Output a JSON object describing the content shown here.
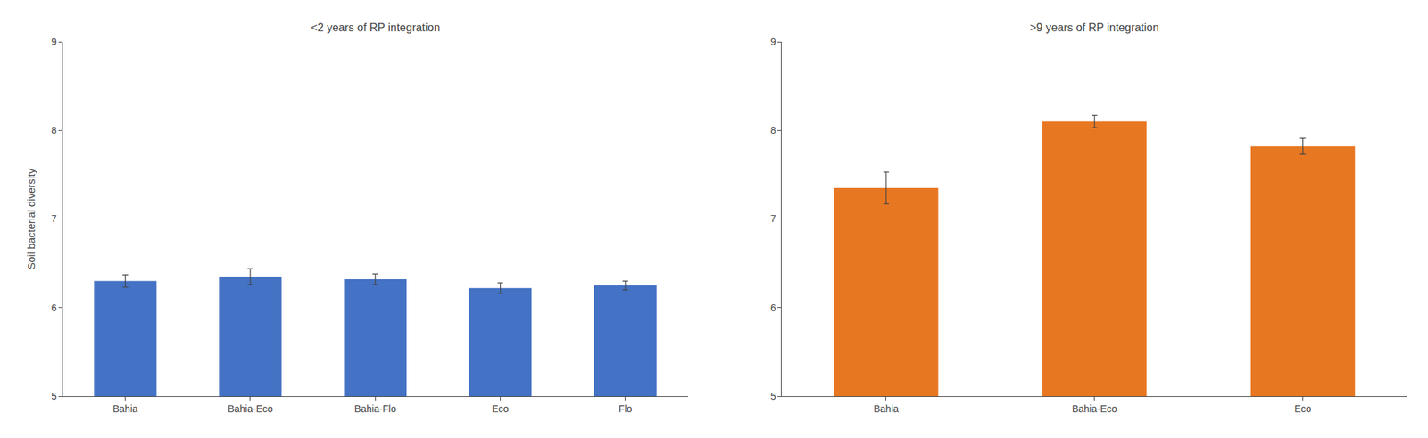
{
  "chart_data": [
    {
      "type": "bar",
      "title": "<2 years of RP integration",
      "ylabel": "Soil bacterial diversity",
      "categories": [
        "Bahia",
        "Bahia-Eco",
        "Bahia-Flo",
        "Eco",
        "Flo"
      ],
      "values": [
        6.3,
        6.35,
        6.32,
        6.22,
        6.25
      ],
      "errors": [
        0.07,
        0.09,
        0.06,
        0.06,
        0.05
      ],
      "color": "#4472C4",
      "ylim": [
        5,
        9
      ],
      "yticks": [
        5,
        6,
        7,
        8,
        9
      ],
      "grid": false
    },
    {
      "type": "bar",
      "title": ">9 years of RP integration",
      "categories": [
        "Bahia",
        "Bahia-Eco",
        "Eco"
      ],
      "values": [
        7.35,
        8.1,
        7.82
      ],
      "errors": [
        0.18,
        0.07,
        0.09
      ],
      "color": "#E87722",
      "ylim": [
        5,
        9
      ],
      "yticks": [
        5,
        6,
        7,
        8,
        9
      ],
      "grid": false
    }
  ]
}
